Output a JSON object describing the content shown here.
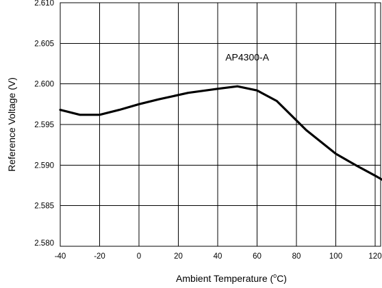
{
  "chart_data": {
    "type": "line",
    "title": "",
    "xlabel": "Ambient Temperature (",
    "xlabel_sup": "o",
    "xlabel_unit": "C)",
    "ylabel": "Reference Voltage (V)",
    "xlim": [
      -40,
      120
    ],
    "ylim": [
      2.58,
      2.61
    ],
    "x_ticks": [
      -40,
      -20,
      0,
      20,
      40,
      60,
      80,
      100,
      120
    ],
    "x_tick_labels": [
      "-40",
      "-20",
      "0",
      "20",
      "40",
      "60",
      "80",
      "100",
      "120"
    ],
    "y_ticks": [
      2.58,
      2.585,
      2.59,
      2.595,
      2.6,
      2.605,
      2.61
    ],
    "y_tick_labels": [
      "2.580",
      "2.585",
      "2.590",
      "2.595",
      "2.600",
      "2.605",
      "2.610"
    ],
    "grid": true,
    "annotation": {
      "text": "AP4300-A",
      "x": 55,
      "y": 2.6033
    },
    "series": [
      {
        "x": [
          -40,
          -30,
          -20,
          -10,
          0,
          10,
          25,
          40,
          50,
          60,
          70,
          85,
          100,
          110,
          120,
          125
        ],
        "y": [
          2.5968,
          2.5962,
          2.5962,
          2.5968,
          2.5975,
          2.5981,
          2.5989,
          2.5994,
          2.5997,
          2.5992,
          2.5979,
          2.5943,
          2.5914,
          2.59,
          2.5887,
          2.588
        ]
      }
    ]
  }
}
